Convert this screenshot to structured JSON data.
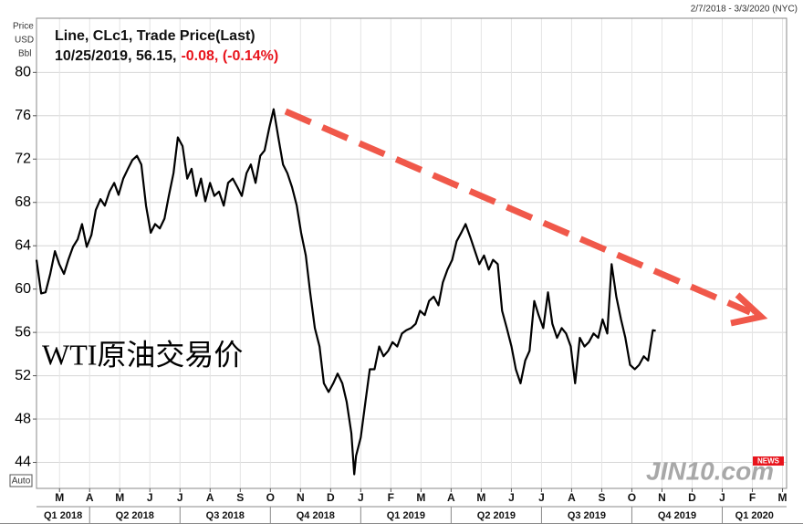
{
  "chart_data": {
    "type": "line",
    "title": "Line, CLc1, Trade Price(Last)",
    "subtitle": "10/25/2019, 56.15,",
    "change": "-0.08, (-0.14%)",
    "date_range": "2/7/2018 - 3/3/2020 (NYC)",
    "y_label": [
      "Price",
      "USD",
      "Bbl"
    ],
    "scale_button": "Auto",
    "annotation": "WTI原油交易价",
    "watermark": "JIN10.com",
    "watermark_badge": "NEWS",
    "color": "#000000",
    "grid": true,
    "ylim": [
      41.6,
      85
    ],
    "yticks": [
      44,
      48,
      52,
      56,
      60,
      64,
      68,
      72,
      76,
      80
    ],
    "xlim": [
      2018.103,
      2020.178
    ],
    "xticks": [
      {
        "value": 2018.1667,
        "label": "M"
      },
      {
        "value": 2018.25,
        "label": "A"
      },
      {
        "value": 2018.3333,
        "label": "M"
      },
      {
        "value": 2018.4167,
        "label": "J"
      },
      {
        "value": 2018.5,
        "label": "J"
      },
      {
        "value": 2018.5833,
        "label": "A"
      },
      {
        "value": 2018.6667,
        "label": "S"
      },
      {
        "value": 2018.75,
        "label": "O"
      },
      {
        "value": 2018.8333,
        "label": "N"
      },
      {
        "value": 2018.9167,
        "label": "D"
      },
      {
        "value": 2019.0,
        "label": "J"
      },
      {
        "value": 2019.0833,
        "label": "F"
      },
      {
        "value": 2019.1667,
        "label": "M"
      },
      {
        "value": 2019.25,
        "label": "A"
      },
      {
        "value": 2019.3333,
        "label": "M"
      },
      {
        "value": 2019.4167,
        "label": "J"
      },
      {
        "value": 2019.5,
        "label": "J"
      },
      {
        "value": 2019.5833,
        "label": "A"
      },
      {
        "value": 2019.6667,
        "label": "S"
      },
      {
        "value": 2019.75,
        "label": "O"
      },
      {
        "value": 2019.8333,
        "label": "N"
      },
      {
        "value": 2019.9167,
        "label": "D"
      },
      {
        "value": 2020.0,
        "label": "J"
      },
      {
        "value": 2020.0833,
        "label": "F"
      },
      {
        "value": 2020.1667,
        "label": "M"
      }
    ],
    "quarters": [
      {
        "label": "Q1 2018",
        "start": 2018.0,
        "end": 2018.25
      },
      {
        "label": "Q2 2018",
        "start": 2018.25,
        "end": 2018.5
      },
      {
        "label": "Q3 2018",
        "start": 2018.5,
        "end": 2018.75
      },
      {
        "label": "Q4 2018",
        "start": 2018.75,
        "end": 2019.0
      },
      {
        "label": "Q1 2019",
        "start": 2019.0,
        "end": 2019.25
      },
      {
        "label": "Q2 2019",
        "start": 2019.25,
        "end": 2019.5
      },
      {
        "label": "Q3 2019",
        "start": 2019.5,
        "end": 2019.75
      },
      {
        "label": "Q4 2019",
        "start": 2019.75,
        "end": 2020.0
      },
      {
        "label": "Q1 2020",
        "start": 2020.0,
        "end": 2020.25
      }
    ],
    "x": [
      2018.103,
      2018.116,
      2018.128,
      2018.141,
      2018.154,
      2018.166,
      2018.179,
      2018.191,
      2018.204,
      2018.217,
      2018.229,
      2018.242,
      2018.255,
      2018.267,
      2018.28,
      2018.292,
      2018.305,
      2018.318,
      2018.33,
      2018.343,
      2018.356,
      2018.368,
      2018.381,
      2018.393,
      2018.406,
      2018.419,
      2018.431,
      2018.444,
      2018.457,
      2018.469,
      2018.482,
      2018.494,
      2018.507,
      2018.52,
      2018.532,
      2018.545,
      2018.558,
      2018.57,
      2018.583,
      2018.595,
      2018.608,
      2018.621,
      2018.633,
      2018.646,
      2018.659,
      2018.671,
      2018.684,
      2018.696,
      2018.709,
      2018.722,
      2018.734,
      2018.747,
      2018.759,
      2018.772,
      2018.785,
      2018.797,
      2018.81,
      2018.823,
      2018.835,
      2018.848,
      2018.86,
      2018.873,
      2018.886,
      2018.898,
      2018.911,
      2018.924,
      2018.936,
      2018.949,
      2018.961,
      2018.974,
      2018.982,
      2018.987,
      2019.0,
      2019.013,
      2019.025,
      2019.038,
      2019.051,
      2019.063,
      2019.076,
      2019.088,
      2019.101,
      2019.114,
      2019.126,
      2019.139,
      2019.152,
      2019.164,
      2019.177,
      2019.189,
      2019.202,
      2019.215,
      2019.227,
      2019.24,
      2019.253,
      2019.265,
      2019.278,
      2019.29,
      2019.303,
      2019.316,
      2019.328,
      2019.341,
      2019.354,
      2019.366,
      2019.379,
      2019.391,
      2019.404,
      2019.417,
      2019.429,
      2019.442,
      2019.455,
      2019.467,
      2019.48,
      2019.492,
      2019.505,
      2019.518,
      2019.53,
      2019.543,
      2019.556,
      2019.568,
      2019.581,
      2019.593,
      2019.606,
      2019.619,
      2019.631,
      2019.644,
      2019.657,
      2019.669,
      2019.682,
      2019.694,
      2019.707,
      2019.72,
      2019.732,
      2019.745,
      2019.758,
      2019.77,
      2019.783,
      2019.795,
      2019.808,
      2019.816
    ],
    "values": [
      62.7,
      59.6,
      59.7,
      61.4,
      63.5,
      62.3,
      61.4,
      62.7,
      63.9,
      64.6,
      66.0,
      63.9,
      65.0,
      67.3,
      68.3,
      67.7,
      69.0,
      69.8,
      68.7,
      70.2,
      71.1,
      71.9,
      72.3,
      71.5,
      67.7,
      65.2,
      66.0,
      65.6,
      66.5,
      68.6,
      70.7,
      74.0,
      73.2,
      70.2,
      71.1,
      68.6,
      70.2,
      68.1,
      69.8,
      68.6,
      69.0,
      67.7,
      69.8,
      70.2,
      69.4,
      68.6,
      70.7,
      71.5,
      69.8,
      72.3,
      72.8,
      74.9,
      76.6,
      74.0,
      71.5,
      70.7,
      69.4,
      67.7,
      65.2,
      63.1,
      59.7,
      56.4,
      54.7,
      51.3,
      50.5,
      51.3,
      52.2,
      51.3,
      49.6,
      46.7,
      42.9,
      44.6,
      46.3,
      49.6,
      52.6,
      52.6,
      54.7,
      53.8,
      54.3,
      55.1,
      54.7,
      55.9,
      56.2,
      56.4,
      56.8,
      58.0,
      57.6,
      58.9,
      59.3,
      58.5,
      60.6,
      61.8,
      62.7,
      64.4,
      65.2,
      66.0,
      64.8,
      63.5,
      62.3,
      63.1,
      61.8,
      62.7,
      62.3,
      58.0,
      56.4,
      54.7,
      52.6,
      51.3,
      53.4,
      54.3,
      58.9,
      57.6,
      56.4,
      59.7,
      56.8,
      55.5,
      56.4,
      55.9,
      54.7,
      51.3,
      55.5,
      54.7,
      55.1,
      55.9,
      55.5,
      57.2,
      55.9,
      62.3,
      59.3,
      57.2,
      55.5,
      53.0,
      52.6,
      53.0,
      53.8,
      53.4,
      56.2,
      56.15
    ]
  }
}
